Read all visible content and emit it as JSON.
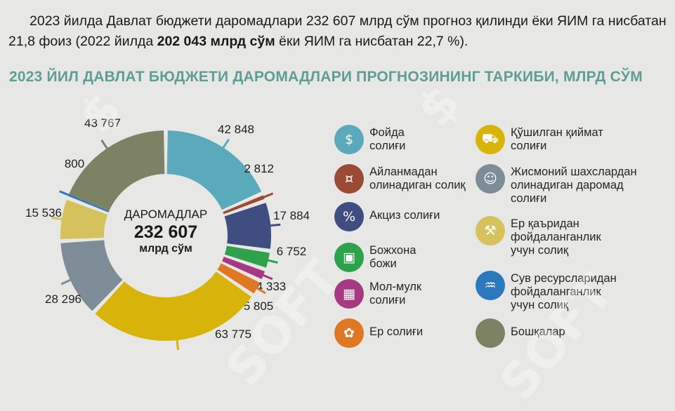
{
  "intro": {
    "part1": "2023 йилда Давлат бюджети даромадлари 232 607 млрд сўм прогноз қилинди ёки  ЯИМ га нисбатан 21,8 фоиз (2022 йилда ",
    "bold": "202 043 млрд сўм",
    "part2": " ёки ЯИМ га нисбатан 22,7 %)."
  },
  "chart_data": {
    "type": "pie",
    "title": "2023 ЙИЛ ДАВЛАТ БЮДЖЕТИ ДАРОМАДЛАРИ ПРОГНОЗИНИНГ ТАРКИБИ, МЛРД СЎМ",
    "center": {
      "line1": "ДАРОМАДЛАР",
      "line2": "232 607",
      "line3": "млрд сўм"
    },
    "slices": [
      {
        "label": "Фойда солиғи",
        "value": 42848,
        "display": "42 848",
        "color": "#5aaabb"
      },
      {
        "label": "Айланмадан олинадиган солиқ",
        "value": 2812,
        "display": "2 812",
        "color": "#9a4a35"
      },
      {
        "label": "Акциз солиғи",
        "value": 17884,
        "display": "17 884",
        "color": "#3f4d80"
      },
      {
        "label": "Божхона божи",
        "value": 6752,
        "display": "6 752",
        "color": "#2ea24a"
      },
      {
        "label": "Мол-мулк солиғи",
        "value": 4333,
        "display": "4 333",
        "color": "#a63a82"
      },
      {
        "label": "Ер солиғи",
        "value": 5805,
        "display": "5 805",
        "color": "#e07722"
      },
      {
        "label": "Қўшилган қиймат солиғи",
        "value": 63775,
        "display": "63 775",
        "color": "#d8b40a"
      },
      {
        "label": "Жисмоний шахслардан олинадиган даромад солиғи",
        "value": 28296,
        "display": "28 296",
        "color": "#7d8c96"
      },
      {
        "label": "Ер қаъридан фойдаланганлик учун солиқ",
        "value": 15536,
        "display": "15 536",
        "color": "#d6c25c"
      },
      {
        "label": "Сув ресурсларидан фойдаланганлик учун солиқ",
        "value": 800,
        "display": "800",
        "color": "#2b78bd"
      },
      {
        "label": "Бошқалар",
        "value": 43767,
        "display": "43 767",
        "color": "#7e8264"
      }
    ]
  },
  "legend": [
    {
      "label": "Фойда\nсолиғи",
      "icon": "hand-coin-icon",
      "glyph": "$",
      "color": "#5aaabb"
    },
    {
      "label": "Айланмадан\nолинадиган солиқ",
      "icon": "coins-icon",
      "glyph": "¤",
      "color": "#9a4a35"
    },
    {
      "label": "Акциз солиғи",
      "icon": "excise-stamp-icon",
      "glyph": "%",
      "color": "#3f4d80"
    },
    {
      "label": "Божхона\nбожи",
      "icon": "customs-cart-icon",
      "glyph": "▣",
      "color": "#2ea24a"
    },
    {
      "label": "Мол-мулк\nсолиғи",
      "icon": "building-icon",
      "glyph": "▦",
      "color": "#a63a82"
    },
    {
      "label": "Ер солиғи",
      "icon": "land-hand-icon",
      "glyph": "✿",
      "color": "#e07722"
    },
    {
      "label": "Қўшилган қиймат\nсолиғи",
      "icon": "shopping-cart-icon",
      "glyph": "⛟",
      "color": "#d8b40a"
    },
    {
      "label": "Жисмоний шахслардан\nолинадиган даромад\nсолиғи",
      "icon": "person-money-icon",
      "glyph": "☺",
      "color": "#7d8c96"
    },
    {
      "label": "Ер қаъридан\nфойдаланганлик\nучун солиқ",
      "icon": "mining-pickaxe-icon",
      "glyph": "⚒",
      "color": "#d6c25c"
    },
    {
      "label": "Сув ресурсларидан\nфойдаланганлик\nучун солиқ",
      "icon": "water-drop-icon",
      "glyph": "♒",
      "color": "#2b78bd"
    },
    {
      "label": "Бошқалар",
      "icon": "other-circle-icon",
      "glyph": "",
      "color": "#7e8264"
    }
  ]
}
